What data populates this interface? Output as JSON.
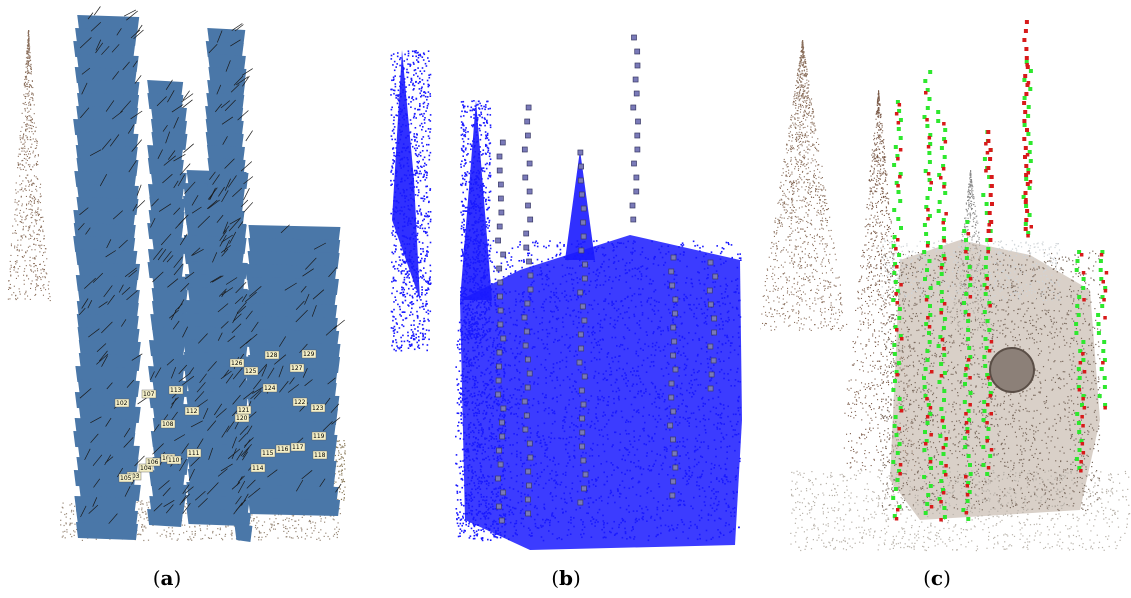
{
  "figure": {
    "panels": [
      {
        "id": "a",
        "caption_letter": "a"
      },
      {
        "id": "b",
        "caption_letter": "b"
      },
      {
        "id": "c",
        "caption_letter": "c"
      }
    ],
    "panel_a_camera_labels": [
      "102",
      "103",
      "104",
      "105",
      "106",
      "107",
      "108",
      "109",
      "110",
      "111",
      "112",
      "113",
      "114",
      "115",
      "116",
      "117",
      "118",
      "119",
      "120",
      "121",
      "122",
      "123",
      "124",
      "125",
      "126",
      "127",
      "128",
      "129"
    ],
    "colors": {
      "camera_blue": "#4a77a8",
      "points_blue": "#1a1aff",
      "camera_dark": "#3a3a66",
      "pose_green": "#2ee82e",
      "pose_red": "#d81a1a",
      "point_brown": "#8a6f5c"
    }
  }
}
